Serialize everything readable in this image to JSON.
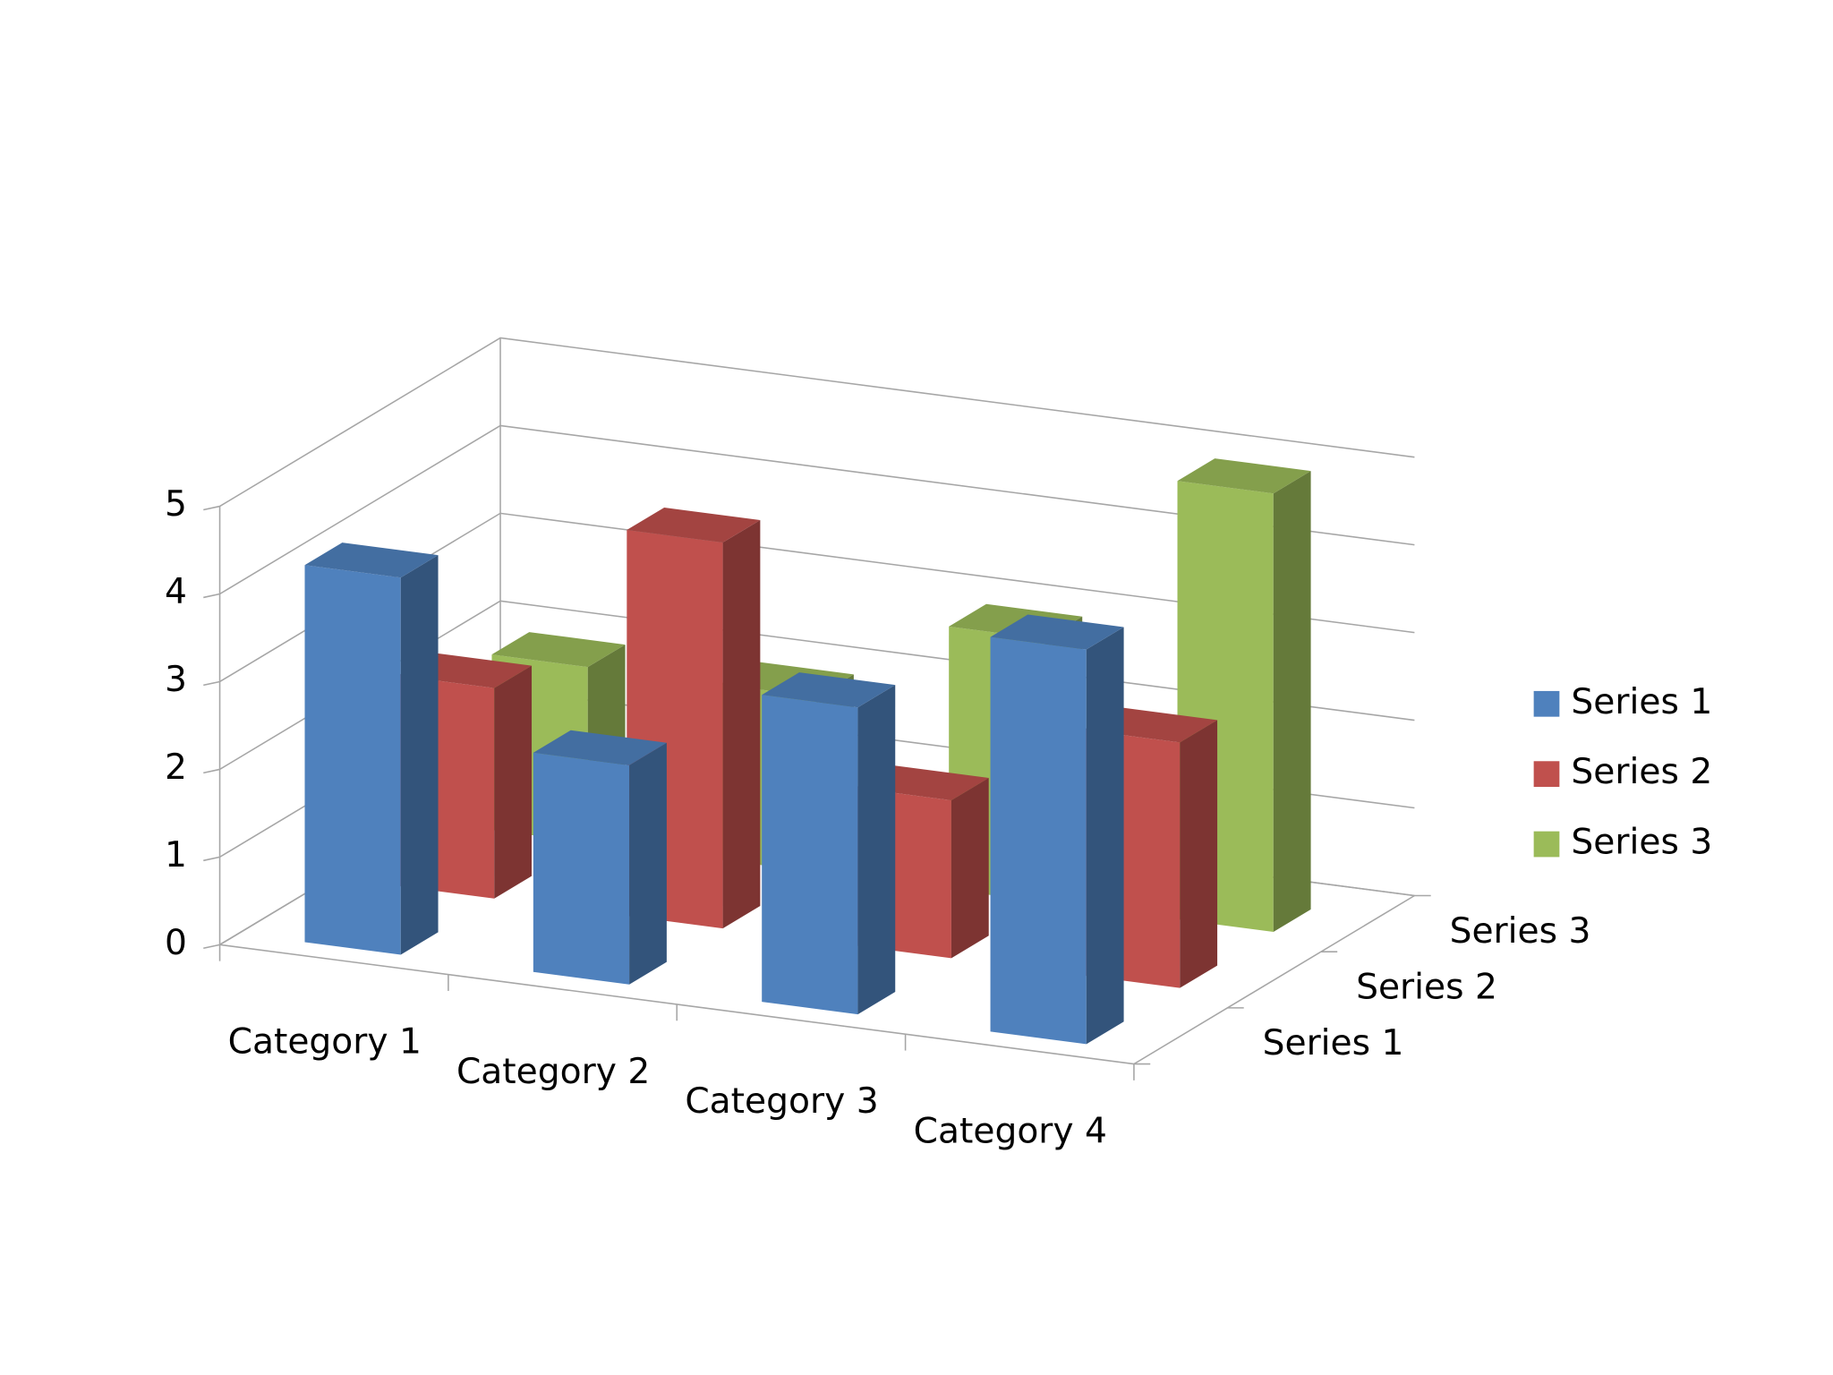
{
  "chart_data": {
    "type": "bar3d",
    "categories": [
      "Category 1",
      "Category 2",
      "Category 3",
      "Category 4"
    ],
    "series": [
      {
        "name": "Series 1",
        "color": "#4f81bd",
        "values": [
          4.3,
          2.5,
          3.5,
          4.5
        ]
      },
      {
        "name": "Series 2",
        "color": "#c0504d",
        "values": [
          2.4,
          4.4,
          1.8,
          2.8
        ]
      },
      {
        "name": "Series 3",
        "color": "#9bbb59",
        "values": [
          2,
          2,
          3,
          5
        ]
      }
    ],
    "ylim": [
      0,
      5
    ],
    "yticks": [
      0,
      1,
      2,
      3,
      4,
      5
    ],
    "grid": true,
    "legend": "right"
  }
}
